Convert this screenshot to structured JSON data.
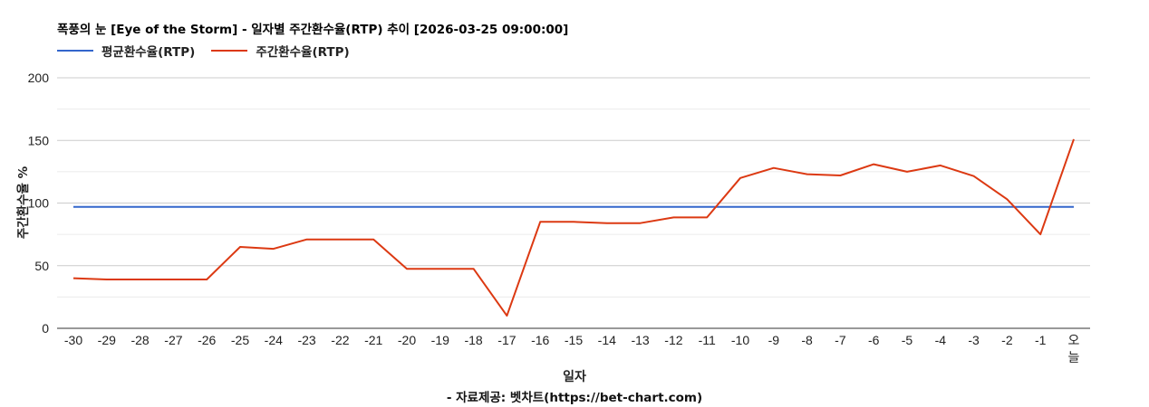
{
  "chart_data": {
    "type": "line",
    "title": "폭풍의 눈 [Eye of the Storm] - 일자별 주간환수율(RTP) 추이 [2026-03-25 09:00:00]",
    "xlabel": "일자",
    "ylabel": "주간환수율 %",
    "source": "- 자료제공: 벳차트(https://bet-chart.com)",
    "ylim": [
      0,
      200
    ],
    "yticks": [
      0,
      50,
      100,
      150,
      200
    ],
    "grid": true,
    "legend_position": "top-left",
    "categories": [
      "-30",
      "-29",
      "-28",
      "-27",
      "-26",
      "-25",
      "-24",
      "-23",
      "-22",
      "-21",
      "-20",
      "-19",
      "-18",
      "-17",
      "-16",
      "-15",
      "-14",
      "-13",
      "-12",
      "-11",
      "-10",
      "-9",
      "-8",
      "-7",
      "-6",
      "-5",
      "-4",
      "-3",
      "-2",
      "-1",
      "오늘"
    ],
    "series": [
      {
        "name": "평균환수율(RTP)",
        "color": "#3366cc",
        "values": [
          97,
          97,
          97,
          97,
          97,
          97,
          97,
          97,
          97,
          97,
          97,
          97,
          97,
          97,
          97,
          97,
          97,
          97,
          97,
          97,
          97,
          97,
          97,
          97,
          97,
          97,
          97,
          97,
          97,
          97,
          97
        ]
      },
      {
        "name": "주간환수율(RTP)",
        "color": "#dc3912",
        "values": [
          40,
          39,
          39,
          39,
          39,
          65,
          63.5,
          71,
          71,
          71,
          47.5,
          47.5,
          47.5,
          10,
          85,
          85,
          84,
          84,
          88.5,
          88.5,
          120,
          128,
          123,
          122,
          131,
          125,
          130,
          121.5,
          103,
          75,
          151
        ]
      }
    ]
  }
}
